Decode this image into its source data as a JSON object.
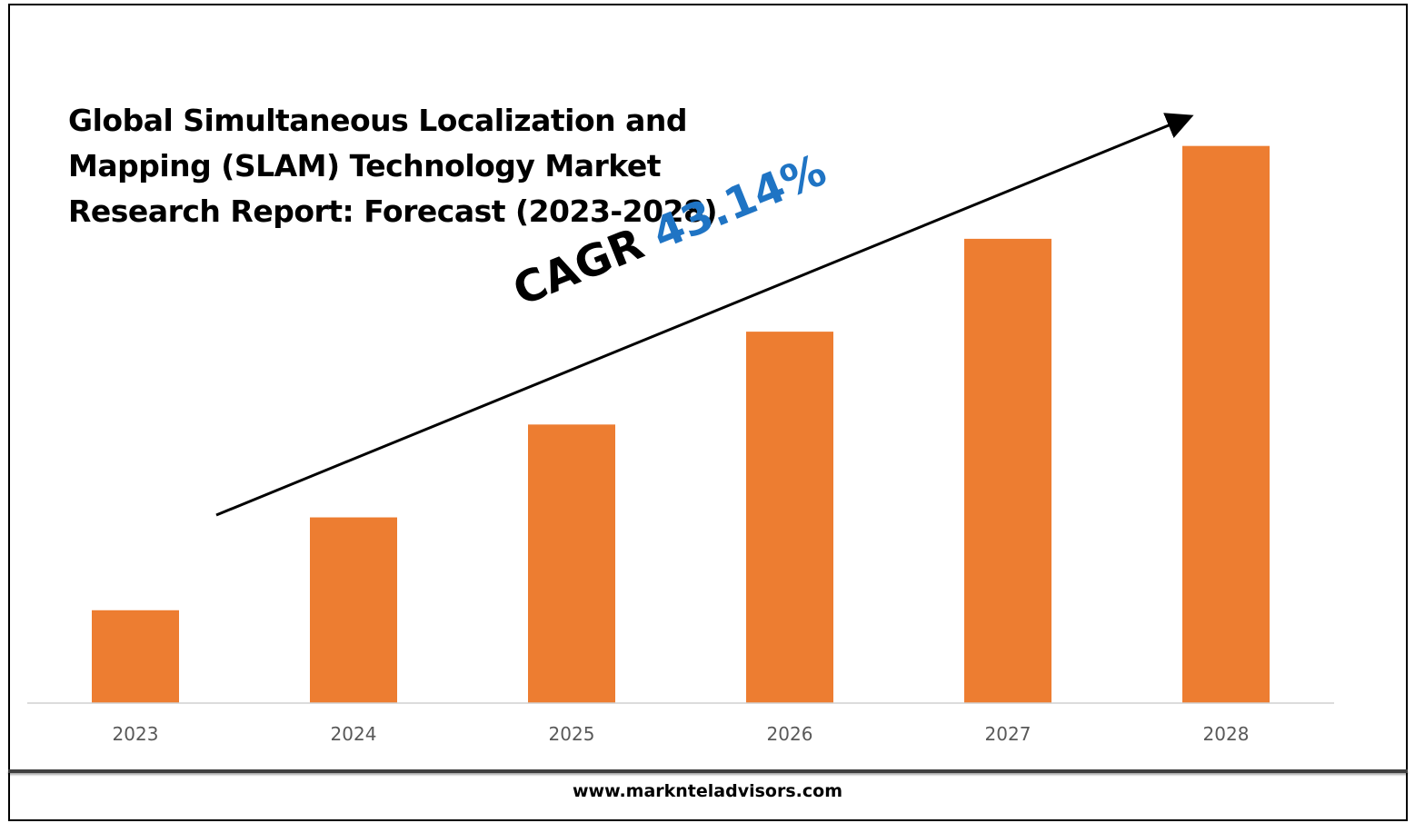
{
  "chart_data": {
    "type": "bar",
    "title": "Global Simultaneous Localization and Mapping (SLAM) Technology Market Research Report: Forecast (2023-2028)",
    "title_lines": [
      "Global Simultaneous Localization and",
      "Mapping (SLAM) Technology Market",
      "Research Report: Forecast (2023-2028)"
    ],
    "categories": [
      "2023",
      "2024",
      "2025",
      "2026",
      "2027",
      "2028"
    ],
    "values": [
      1,
      2,
      3,
      4,
      5,
      6
    ],
    "ylim": [
      0,
      6.3
    ],
    "xlabel": "",
    "ylabel": "",
    "grid": false,
    "bar_color": "#ed7d31",
    "annotation": {
      "label": "CAGR",
      "value": "43.14%",
      "value_color": "#1f74c4",
      "arrow": "upward trend arrow"
    }
  },
  "footer": {
    "url": "www.marknteladvisors.com"
  }
}
